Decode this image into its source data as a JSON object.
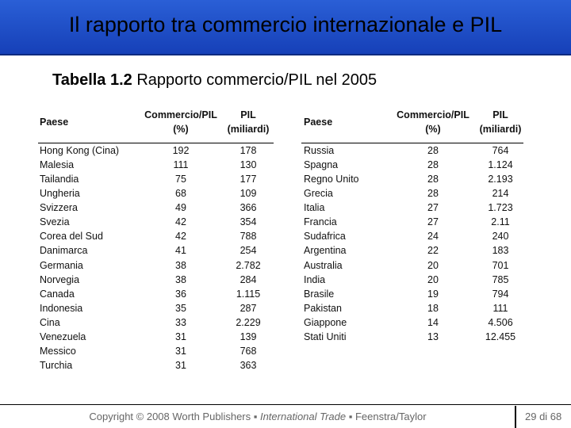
{
  "header": {
    "title": "Il rapporto tra commercio internazionale e PIL"
  },
  "caption": {
    "label": "Tabella 1.2",
    "text": "Rapporto commercio/PIL nel 2005"
  },
  "tables": [
    {
      "columns": [
        [
          "Paese"
        ],
        [
          "Commercio/PIL",
          "(%)"
        ],
        [
          "PIL",
          "(miliardi)"
        ]
      ],
      "rows": [
        [
          "Hong Kong (Cina)",
          "192",
          "178"
        ],
        [
          "Malesia",
          "111",
          "130"
        ],
        [
          "Tailandia",
          "75",
          "177"
        ],
        [
          "Ungheria",
          "68",
          "109"
        ],
        [
          "Svizzera",
          "49",
          "366"
        ],
        [
          "Svezia",
          "42",
          "354"
        ],
        [
          "Corea del Sud",
          "42",
          "788"
        ],
        [
          "Danimarca",
          "41",
          "254"
        ],
        [
          "Germania",
          "38",
          "2.782"
        ],
        [
          "Norvegia",
          "38",
          "284"
        ],
        [
          "Canada",
          "36",
          "1.115"
        ],
        [
          "Indonesia",
          "35",
          "287"
        ],
        [
          "Cina",
          "33",
          "2.229"
        ],
        [
          "Venezuela",
          "31",
          "139"
        ],
        [
          "Messico",
          "31",
          "768"
        ],
        [
          "Turchia",
          "31",
          "363"
        ]
      ]
    },
    {
      "columns": [
        [
          "Paese"
        ],
        [
          "Commercio/PIL",
          "(%)"
        ],
        [
          "PIL",
          "(miliardi)"
        ]
      ],
      "rows": [
        [
          "Russia",
          "28",
          "764"
        ],
        [
          "Spagna",
          "28",
          "1.124"
        ],
        [
          "Regno Unito",
          "28",
          "2.193"
        ],
        [
          "Grecia",
          "28",
          "214"
        ],
        [
          "Italia",
          "27",
          "1.723"
        ],
        [
          "Francia",
          "27",
          "2.11"
        ],
        [
          "Sudafrica",
          "24",
          "240"
        ],
        [
          "Argentina",
          "22",
          "183"
        ],
        [
          "Australia",
          "20",
          "701"
        ],
        [
          "India",
          "20",
          "785"
        ],
        [
          "Brasile",
          "19",
          "794"
        ],
        [
          "Pakistan",
          "18",
          "111"
        ],
        [
          "Giappone",
          "14",
          "4.506"
        ],
        [
          "Stati Uniti",
          "13",
          "12.455"
        ]
      ]
    }
  ],
  "footer": {
    "parts": [
      "Copyright © 2008 Worth Publishers ▪ ",
      "International Trade",
      " ▪ Feenstra/Taylor"
    ],
    "page": "29 di 68"
  }
}
